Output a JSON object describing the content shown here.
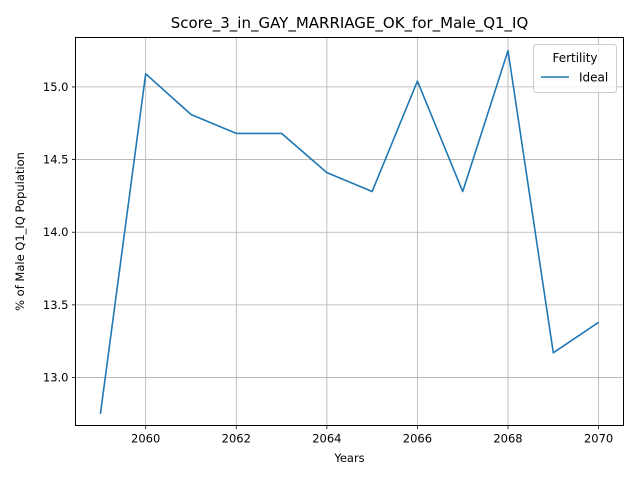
{
  "chart_data": {
    "type": "line",
    "title": "Score_3_in_GAY_MARRIAGE_OK_for_Male_Q1_IQ",
    "xlabel": "Years",
    "ylabel": "% of Male Q1_IQ Population",
    "xlim": [
      2058.45,
      2070.55
    ],
    "ylim": [
      12.67,
      15.34
    ],
    "xticks": [
      2060,
      2062,
      2064,
      2066,
      2068,
      2070
    ],
    "yticks": [
      13.0,
      13.5,
      14.0,
      14.5,
      15.0
    ],
    "grid": true,
    "legend": {
      "title": "Fertility",
      "placement": "top-right"
    },
    "series": [
      {
        "name": "Ideal",
        "color": "#1f77b4",
        "x": [
          2059,
          2060,
          2061,
          2062,
          2063,
          2064,
          2065,
          2066,
          2067,
          2068,
          2069,
          2070
        ],
        "y": [
          12.75,
          15.09,
          14.81,
          14.68,
          14.68,
          14.41,
          14.28,
          15.04,
          14.28,
          15.25,
          13.17,
          13.38
        ]
      }
    ]
  }
}
